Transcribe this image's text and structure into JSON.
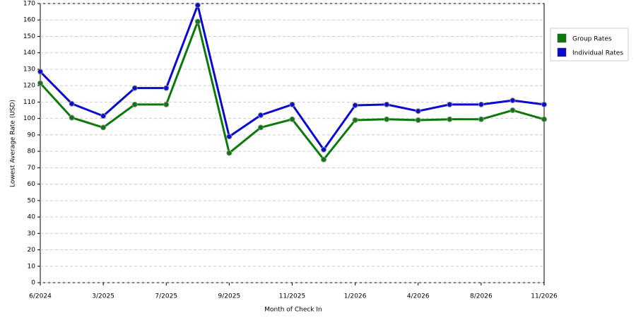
{
  "chart_data": {
    "type": "line",
    "x_label": "Month of Check In",
    "y_label": "Lowest Average Rate (USD)",
    "categories": [
      "6/2024",
      null,
      "3/2025",
      null,
      "7/2025",
      null,
      "9/2025",
      null,
      "11/2025",
      null,
      "1/2026",
      null,
      "4/2026",
      null,
      "8/2026",
      null,
      "11/2026"
    ],
    "series": [
      {
        "name": "Group Rates",
        "color": "#0b7a0b",
        "values": [
          121.5,
          100.5,
          94.5,
          108.5,
          108.5,
          159,
          79,
          94.5,
          99.5,
          75,
          99,
          99.5,
          99,
          99.5,
          99.5,
          105,
          99.5
        ]
      },
      {
        "name": "Individual Rates",
        "color": "#0a0ad0",
        "values": [
          128.5,
          109,
          101.5,
          118.5,
          118.5,
          169,
          89,
          102,
          108.5,
          81,
          108,
          108.5,
          104.5,
          108.5,
          108.5,
          111,
          108.5
        ]
      }
    ],
    "ylim": [
      0,
      170
    ],
    "yticks": [
      0,
      10,
      20,
      30,
      40,
      50,
      60,
      70,
      80,
      90,
      100,
      110,
      120,
      130,
      140,
      150,
      160,
      170
    ],
    "grid": true,
    "legend": "right"
  }
}
